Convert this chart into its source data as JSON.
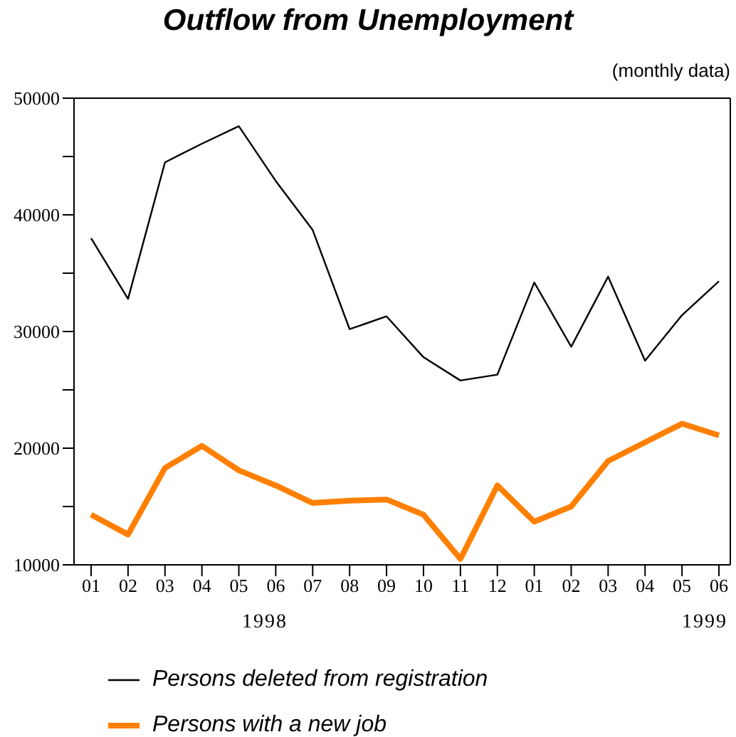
{
  "chart_data": {
    "type": "line",
    "title": "Outflow from Unemployment",
    "categories": [
      "01",
      "02",
      "03",
      "04",
      "05",
      "06",
      "07",
      "08",
      "09",
      "10",
      "11",
      "12",
      "01",
      "02",
      "03",
      "04",
      "05",
      "06"
    ],
    "series": [
      {
        "name": "Persons deleted from registration",
        "color": "#000000",
        "values": [
          38000,
          32800,
          44500,
          46100,
          47600,
          42900,
          38700,
          30200,
          31300,
          27800,
          25800,
          26300,
          34200,
          28700,
          34700,
          27500,
          31400,
          34300
        ]
      },
      {
        "name": "Persons with a new job",
        "color": "#ff8000",
        "values": [
          14300,
          12600,
          18300,
          20200,
          18100,
          16800,
          15300,
          15500,
          15600,
          14300,
          10500,
          16800,
          13700,
          15000,
          18900,
          20500,
          22100,
          21100
        ]
      }
    ],
    "ylim": [
      10000,
      50000
    ],
    "yticks": [
      10000,
      {
        "value": 15000,
        "label": null
      },
      20000,
      {
        "value": 25000,
        "label": null
      },
      30000,
      {
        "value": 35000,
        "label": null
      },
      40000,
      {
        "value": 45000,
        "label": null
      },
      50000
    ],
    "annotations": [
      "(monthly data)",
      "1998",
      "1999"
    ],
    "legend": "bottom",
    "grid": false,
    "marker": "none",
    "line_style": "solid"
  }
}
